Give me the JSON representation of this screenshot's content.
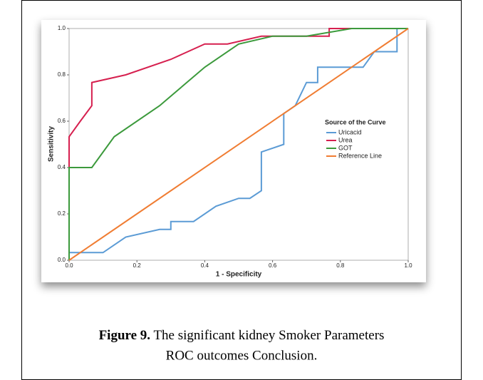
{
  "chart_data": {
    "type": "line",
    "xlabel": "1 - Specificity",
    "ylabel": "Sensitivity",
    "legend_title": "Source of the Curve",
    "legend": "right",
    "xlim": [
      0,
      1
    ],
    "ylim": [
      0,
      1
    ],
    "xticks": [
      {
        "value": 0,
        "label": "0.0"
      },
      0.2,
      0.4,
      0.6,
      0.8,
      {
        "value": 1,
        "label": "1.0"
      }
    ],
    "yticks": [
      {
        "value": 0,
        "label": "0.0"
      },
      0.2,
      0.4,
      0.6,
      0.8,
      {
        "value": 1,
        "label": "1.0"
      }
    ],
    "series": [
      {
        "name": "Uricacid",
        "color": "#5b9bd5",
        "x": [
          0,
          0,
          0.1,
          0.167,
          0.267,
          0.3,
          0.3,
          0.367,
          0.433,
          0.5,
          0.533,
          0.567,
          0.567,
          0.633,
          0.633,
          0.667,
          0.7,
          0.733,
          0.733,
          0.867,
          0.9,
          0.967,
          0.967,
          1
        ],
        "values": [
          0,
          0.033,
          0.033,
          0.1,
          0.133,
          0.133,
          0.167,
          0.167,
          0.233,
          0.267,
          0.267,
          0.3,
          0.467,
          0.5,
          0.633,
          0.667,
          0.767,
          0.767,
          0.833,
          0.833,
          0.9,
          0.9,
          1,
          1
        ]
      },
      {
        "name": "Urea",
        "color": "#d6204f",
        "x": [
          0,
          0,
          0.033,
          0.067,
          0.067,
          0.167,
          0.3,
          0.4,
          0.467,
          0.567,
          0.767,
          0.767,
          1
        ],
        "values": [
          0,
          0.533,
          0.6,
          0.667,
          0.767,
          0.8,
          0.867,
          0.933,
          0.933,
          0.967,
          0.967,
          1,
          1
        ]
      },
      {
        "name": "GOT",
        "color": "#3c9a3c",
        "x": [
          0,
          0,
          0.067,
          0.133,
          0.267,
          0.4,
          0.5,
          0.6,
          0.7,
          0.833,
          1
        ],
        "values": [
          0,
          0.4,
          0.4,
          0.533,
          0.667,
          0.833,
          0.933,
          0.967,
          0.967,
          1,
          1
        ]
      },
      {
        "name": "Reference Line",
        "color": "#f07d33",
        "x": [
          0,
          1
        ],
        "values": [
          0,
          1
        ]
      }
    ]
  },
  "caption": {
    "label": "Figure 9.",
    "line1": " The significant kidney Smoker Parameters",
    "line2": "ROC outcomes Conclusion."
  }
}
